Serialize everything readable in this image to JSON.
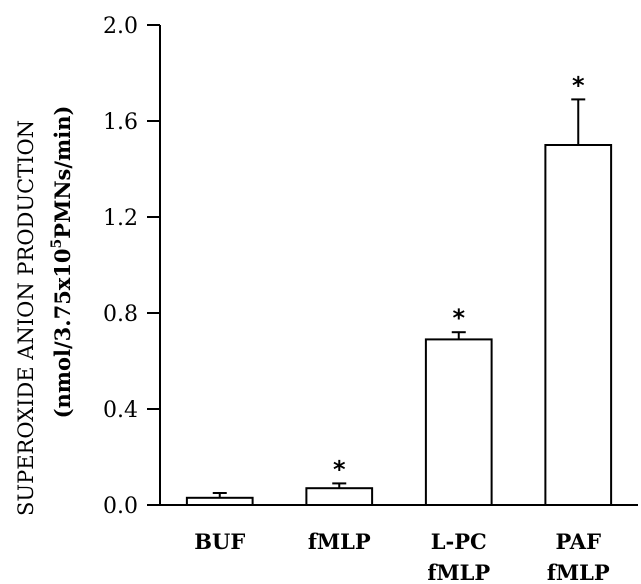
{
  "chart_data": {
    "type": "bar",
    "title": "",
    "categories": [
      [
        "BUF"
      ],
      [
        "fMLP"
      ],
      [
        "L-PC",
        "fMLP"
      ],
      [
        "PAF",
        "fMLP"
      ]
    ],
    "values": [
      0.03,
      0.07,
      0.69,
      1.5
    ],
    "errors": [
      0.02,
      0.02,
      0.03,
      0.19
    ],
    "significance": [
      "",
      "*",
      "*",
      "*"
    ],
    "ylabel_line1": "SUPEROXIDE ANION PRODUCTION",
    "ylabel_line2_pre": "(nmol/3.75x10",
    "ylabel_line2_sup": "5",
    "ylabel_line2_post": "PMNs/min)",
    "ylim": [
      0,
      2.0
    ],
    "yticks": [
      "0.0",
      "0.4",
      "0.8",
      "1.2",
      "1.6",
      "2.0"
    ],
    "grid": false
  }
}
